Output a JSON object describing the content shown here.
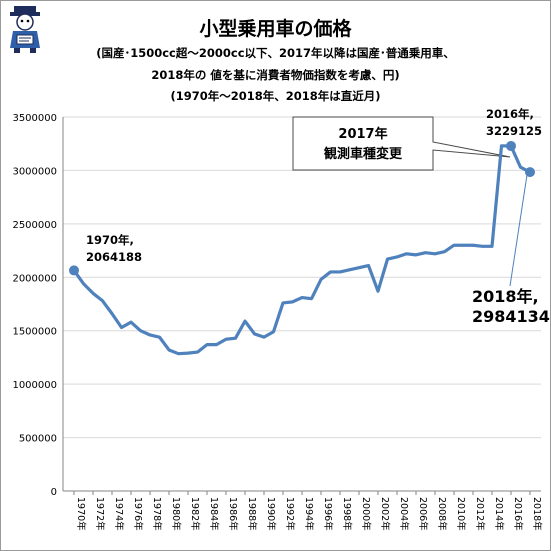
{
  "title": "小型乗用車の価格",
  "subtitle_lines": [
    "(国産･1500cc超～2000cc以下、2017年以降は国産･普通乗用車、",
    "2018年の 値を基に消費者物価指数を考慮、円)",
    "(1970年～2018年、2018年は直近月)"
  ],
  "callout": {
    "line1": "2017年",
    "line2": "観測車種変更"
  },
  "annotations": {
    "start": {
      "line1": "1970年,",
      "line2": "2064188"
    },
    "peak": {
      "line1": "2016年,",
      "line2": "3229125"
    },
    "end": {
      "line1": "2018年,",
      "line2": "2984134"
    }
  },
  "colors": {
    "line": "#4f81bd",
    "grid": "#d9d9d9",
    "axis": "#868686"
  },
  "chart_data": {
    "type": "line",
    "x": [
      1970,
      1971,
      1972,
      1973,
      1974,
      1975,
      1976,
      1977,
      1978,
      1979,
      1980,
      1981,
      1982,
      1983,
      1984,
      1985,
      1986,
      1987,
      1988,
      1989,
      1990,
      1991,
      1992,
      1993,
      1994,
      1995,
      1996,
      1997,
      1998,
      1999,
      2000,
      2001,
      2002,
      2003,
      2004,
      2005,
      2006,
      2007,
      2008,
      2009,
      2010,
      2011,
      2012,
      2013,
      2014,
      2015,
      2016,
      2017,
      2018
    ],
    "values": [
      2064188,
      1940000,
      1850000,
      1780000,
      1660000,
      1530000,
      1580000,
      1500000,
      1460000,
      1440000,
      1320000,
      1285000,
      1290000,
      1300000,
      1370000,
      1370000,
      1420000,
      1430000,
      1590000,
      1470000,
      1440000,
      1490000,
      1760000,
      1770000,
      1810000,
      1800000,
      1980000,
      2050000,
      2050000,
      2070000,
      2090000,
      2110000,
      1870000,
      2170000,
      2190000,
      2220000,
      2210000,
      2230000,
      2220000,
      2240000,
      2300000,
      2300000,
      2300000,
      2290000,
      2290000,
      3230000,
      3229125,
      3030000,
      2984134
    ],
    "x_tick_labels": [
      "1970年",
      "1972年",
      "1974年",
      "1976年",
      "1978年",
      "1980年",
      "1982年",
      "1984年",
      "1986年",
      "1988年",
      "1990年",
      "1992年",
      "1994年",
      "1996年",
      "1998年",
      "2000年",
      "2002年",
      "2004年",
      "2006年",
      "2008年",
      "2010年",
      "2012年",
      "2014年",
      "2016年",
      "2018年"
    ],
    "y_ticks": [
      0,
      500000,
      1000000,
      1500000,
      2000000,
      2500000,
      3000000,
      3500000
    ],
    "y_tick_labels": [
      "0",
      "500000",
      "1000000",
      "1500000",
      "2000000",
      "2500000",
      "3000000",
      "3500000"
    ],
    "ylim": [
      0,
      3500000
    ],
    "grid": true,
    "legend": "none"
  }
}
